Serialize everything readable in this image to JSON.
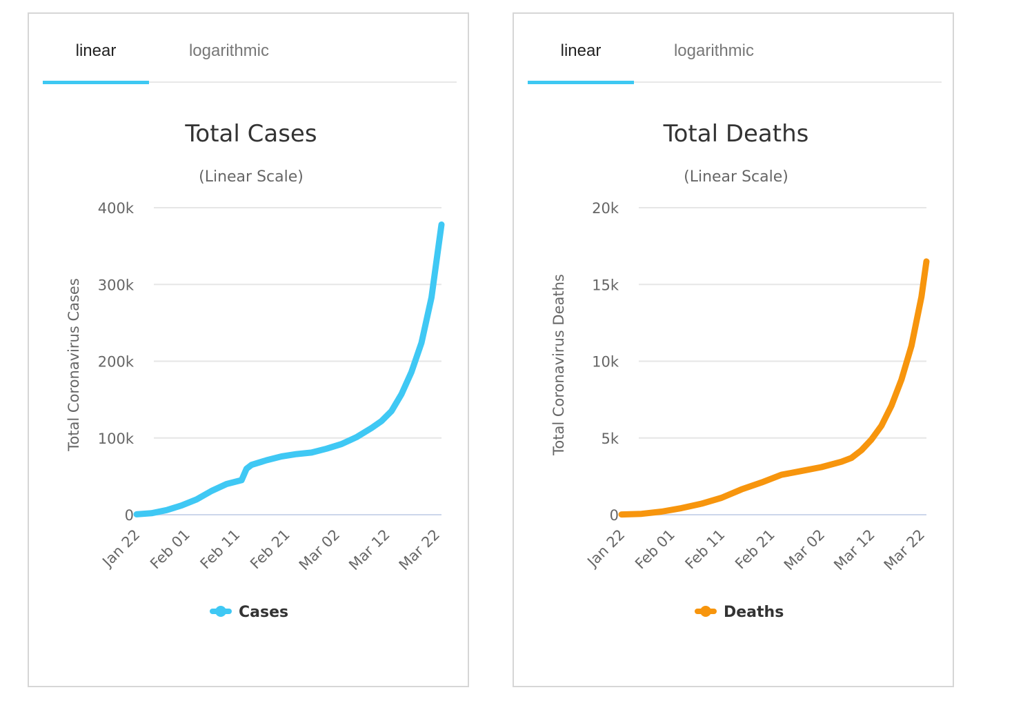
{
  "panels": [
    {
      "tabs": [
        "linear",
        "logarithmic"
      ],
      "active_tab": 0,
      "accent": "#3dc8f2"
    },
    {
      "tabs": [
        "linear",
        "logarithmic"
      ],
      "active_tab": 0,
      "accent": "#3dc8f2"
    }
  ],
  "chart_data": [
    {
      "type": "line",
      "title": "Total Cases",
      "subtitle": "(Linear Scale)",
      "ylabel": "Total Coronavirus Cases",
      "xlabel": "",
      "ylim": [
        0,
        400000
      ],
      "y_ticks": [
        0,
        100000,
        200000,
        300000,
        400000
      ],
      "y_tick_labels": [
        "0",
        "100k",
        "200k",
        "300k",
        "400k"
      ],
      "x_tick_labels": [
        "Jan 22",
        "Feb 01",
        "Feb 11",
        "Feb 21",
        "Mar 02",
        "Mar 12",
        "Mar 22"
      ],
      "x_range": [
        "Jan 22",
        "Mar 23"
      ],
      "grid": true,
      "legend_position": "bottom-center",
      "series": [
        {
          "name": "Cases",
          "color": "#3fc8f4",
          "points": [
            [
              "Jan 22",
              580
            ],
            [
              "Jan 25",
              2000
            ],
            [
              "Jan 28",
              6000
            ],
            [
              "Jan 31",
              12000
            ],
            [
              "Feb 03",
              20000
            ],
            [
              "Feb 06",
              31000
            ],
            [
              "Feb 09",
              40000
            ],
            [
              "Feb 12",
              45000
            ],
            [
              "Feb 13",
              60000
            ],
            [
              "Feb 14",
              65000
            ],
            [
              "Feb 17",
              71000
            ],
            [
              "Feb 20",
              76000
            ],
            [
              "Feb 23",
              79000
            ],
            [
              "Feb 26",
              81000
            ],
            [
              "Feb 29",
              86000
            ],
            [
              "Mar 03",
              92000
            ],
            [
              "Mar 06",
              101000
            ],
            [
              "Mar 09",
              113000
            ],
            [
              "Mar 11",
              122000
            ],
            [
              "Mar 13",
              135000
            ],
            [
              "Mar 15",
              157000
            ],
            [
              "Mar 17",
              186000
            ],
            [
              "Mar 19",
              224000
            ],
            [
              "Mar 21",
              283000
            ],
            [
              "Mar 23",
              378000
            ]
          ]
        }
      ]
    },
    {
      "type": "line",
      "title": "Total Deaths",
      "subtitle": "(Linear Scale)",
      "ylabel": "Total Coronavirus Deaths",
      "xlabel": "",
      "ylim": [
        0,
        20000
      ],
      "y_ticks": [
        0,
        5000,
        10000,
        15000,
        20000
      ],
      "y_tick_labels": [
        "0",
        "5k",
        "10k",
        "15k",
        "20k"
      ],
      "x_tick_labels": [
        "Jan 22",
        "Feb 01",
        "Feb 11",
        "Feb 21",
        "Mar 02",
        "Mar 12",
        "Mar 22"
      ],
      "x_range": [
        "Jan 22",
        "Mar 23"
      ],
      "grid": true,
      "legend_position": "bottom-center",
      "series": [
        {
          "name": "Deaths",
          "color": "#f7950d",
          "points": [
            [
              "Jan 22",
              17
            ],
            [
              "Jan 26",
              60
            ],
            [
              "Jan 30",
              200
            ],
            [
              "Feb 03",
              430
            ],
            [
              "Feb 07",
              720
            ],
            [
              "Feb 11",
              1100
            ],
            [
              "Feb 15",
              1650
            ],
            [
              "Feb 19",
              2100
            ],
            [
              "Feb 23",
              2600
            ],
            [
              "Feb 27",
              2850
            ],
            [
              "Mar 02",
              3100
            ],
            [
              "Mar 06",
              3450
            ],
            [
              "Mar 08",
              3700
            ],
            [
              "Mar 10",
              4200
            ],
            [
              "Mar 12",
              4900
            ],
            [
              "Mar 14",
              5800
            ],
            [
              "Mar 16",
              7100
            ],
            [
              "Mar 18",
              8800
            ],
            [
              "Mar 20",
              11000
            ],
            [
              "Mar 22",
              14200
            ],
            [
              "Mar 23",
              16500
            ]
          ]
        }
      ]
    }
  ]
}
